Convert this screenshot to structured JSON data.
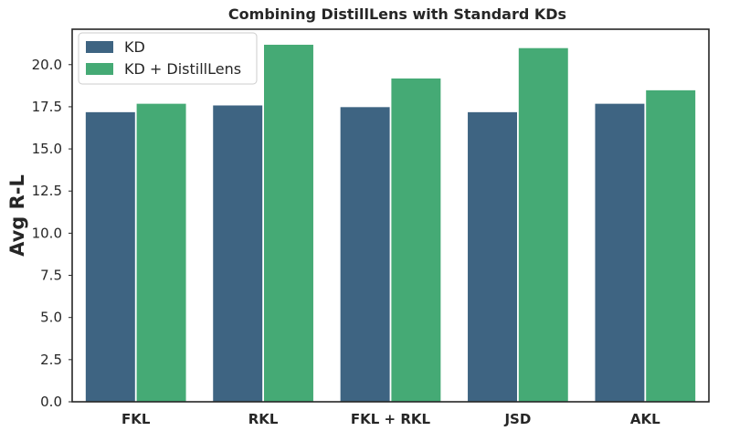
{
  "chart_data": {
    "type": "bar",
    "title": "Combining DistillLens with Standard KDs",
    "xlabel": "",
    "ylabel": "Avg R-L",
    "categories": [
      "FKL",
      "RKL",
      "FKL + RKL",
      "JSD",
      "AKL"
    ],
    "series": [
      {
        "name": "KD",
        "color": "#3e6482",
        "values": [
          17.2,
          17.6,
          17.5,
          17.2,
          17.7
        ]
      },
      {
        "name": "KD + DistillLens",
        "color": "#45aa75",
        "values": [
          17.7,
          21.2,
          19.2,
          21.0,
          18.5
        ]
      }
    ],
    "yticks": [
      "0.0",
      "2.5",
      "5.0",
      "7.5",
      "10.0",
      "12.5",
      "15.0",
      "17.5",
      "20.0"
    ],
    "ylim": [
      0,
      22.1
    ],
    "grid": false,
    "legend_position": "top-left"
  }
}
